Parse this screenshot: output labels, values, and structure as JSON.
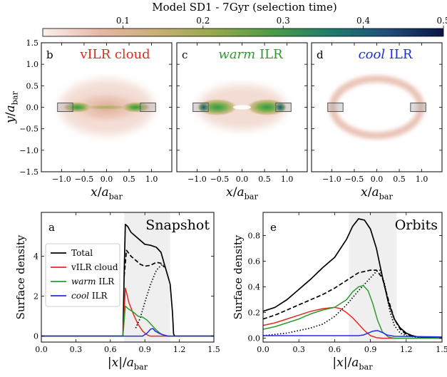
{
  "title": "Model SD1 - 7Gyr (selection time)",
  "colorbar": {
    "ticks": [
      "0.1",
      "0.2",
      "0.3",
      "0.4",
      "0.5"
    ],
    "tick_values": [
      0.1,
      0.2,
      0.3,
      0.4,
      0.5
    ],
    "range": [
      0,
      0.5
    ],
    "colors": [
      "#fbf0ee",
      "#e6b7a6",
      "#c7b075",
      "#96a94a",
      "#4c9b46",
      "#1f7e6b",
      "#1f4f7a",
      "#0c1445"
    ]
  },
  "maps": {
    "x_ticks": [
      "−1.0",
      "−0.5",
      "0.0",
      "0.5",
      "1.0"
    ],
    "y_ticks": [
      "1.5",
      "1.0",
      "0.5",
      "0.0",
      "−0.5",
      "−1.0",
      "−1.5"
    ],
    "x_label_var": "x",
    "y_label_var": "y",
    "label_over": "/a",
    "label_sub": "bar",
    "panels": [
      {
        "letter": "b",
        "title_prefix": "vILR cloud",
        "title_italic": "",
        "title_suffix": "",
        "color": "#e8281e"
      },
      {
        "letter": "c",
        "title_prefix": "",
        "title_italic": "warm",
        "title_suffix": " ILR",
        "color": "#2e9a2e"
      },
      {
        "letter": "d",
        "title_prefix": "",
        "title_italic": "cool",
        "title_suffix": " ILR",
        "color": "#1f2ee0"
      }
    ]
  },
  "chart_data": [
    {
      "type": "line",
      "panel": "a",
      "label": "Snapshot",
      "xlabel_var": "|x|",
      "label_over": "/a",
      "label_sub": "bar",
      "ylabel": "Surface density",
      "xlim": [
        0,
        1.5
      ],
      "ylim": [
        -0.3,
        6.2
      ],
      "x_ticks": [
        0.0,
        0.3,
        0.6,
        0.9,
        1.2,
        1.5
      ],
      "x_tick_labels": [
        "0.0",
        "0.3",
        "0.6",
        "0.9",
        "1.2",
        "1.5"
      ],
      "y_ticks": [
        0,
        2,
        4
      ],
      "y_tick_labels": [
        "0",
        "2",
        "4"
      ],
      "shaded": [
        0.72,
        1.12
      ],
      "legend": [
        {
          "label": "Total",
          "italic": "",
          "suffix": "",
          "color": "#000000"
        },
        {
          "label": "vILR cloud",
          "italic": "",
          "suffix": "",
          "color": "#e8281e"
        },
        {
          "label": "",
          "italic": "warm",
          "suffix": " ILR",
          "color": "#2e9a2e"
        },
        {
          "label": "",
          "italic": "cool",
          "suffix": " ILR",
          "color": "#1f2ee0"
        }
      ],
      "series": [
        {
          "color": "#000000",
          "style": "solid",
          "x": [
            0,
            0.71,
            0.72,
            0.73,
            0.75,
            0.78,
            0.82,
            0.86,
            0.9,
            0.95,
            1.0,
            1.04,
            1.07,
            1.1,
            1.12,
            1.14,
            1.15,
            1.16,
            1.5
          ],
          "y": [
            0,
            0,
            3.2,
            5.6,
            5.5,
            5.2,
            5.0,
            4.8,
            4.6,
            4.55,
            4.45,
            4.2,
            3.6,
            3.0,
            2.6,
            1.2,
            0.1,
            0,
            0
          ]
        },
        {
          "color": "#000000",
          "style": "dashed",
          "x": [
            0.72,
            0.74,
            0.78,
            0.82,
            0.86,
            0.9,
            0.95,
            1.0,
            1.04,
            1.07
          ],
          "y": [
            3.0,
            4.3,
            4.0,
            3.8,
            3.6,
            3.5,
            3.55,
            3.7,
            3.65,
            3.45
          ]
        },
        {
          "color": "#000000",
          "style": "dotted",
          "x": [
            0.82,
            0.86,
            0.9,
            0.95,
            1.0,
            1.05,
            1.08
          ],
          "y": [
            0.4,
            0.9,
            1.7,
            2.6,
            3.3,
            3.6,
            3.6
          ]
        },
        {
          "color": "#e8281e",
          "style": "solid",
          "x": [
            0,
            0.71,
            0.72,
            0.73,
            0.74,
            0.76,
            0.8,
            0.84,
            0.88,
            0.91,
            0.93,
            0.95,
            1.5
          ],
          "y": [
            0,
            0,
            1.2,
            2.4,
            2.2,
            1.7,
            1.1,
            0.6,
            0.25,
            0.1,
            0.03,
            0,
            0
          ]
        },
        {
          "color": "#2e9a2e",
          "style": "solid",
          "x": [
            0,
            0.71,
            0.72,
            0.73,
            0.76,
            0.8,
            0.84,
            0.88,
            0.92,
            0.96,
            1.0,
            1.03,
            1.06,
            1.1,
            1.5
          ],
          "y": [
            0,
            0,
            0.8,
            1.5,
            1.35,
            1.2,
            1.0,
            0.95,
            0.8,
            0.55,
            0.3,
            0.15,
            0.05,
            0,
            0
          ]
        },
        {
          "color": "#1f2ee0",
          "style": "solid",
          "x": [
            0,
            0.88,
            0.92,
            0.95,
            0.97,
            0.99,
            1.02,
            1.05,
            1.1,
            1.5
          ],
          "y": [
            0,
            0,
            0.15,
            0.35,
            0.38,
            0.25,
            0.15,
            0.08,
            0,
            0
          ]
        }
      ]
    },
    {
      "type": "line",
      "panel": "e",
      "label": "Orbits",
      "xlabel_var": "|x|",
      "label_over": "/a",
      "label_sub": "bar",
      "ylabel": "Surface density",
      "xlim": [
        0,
        1.5
      ],
      "ylim": [
        -0.03,
        0.98
      ],
      "x_ticks": [
        0.0,
        0.3,
        0.6,
        0.9,
        1.2,
        1.5
      ],
      "x_tick_labels": [
        "0.0",
        "0.3",
        "0.6",
        "0.9",
        "1.2",
        "1.5"
      ],
      "y_ticks": [
        0,
        0.2,
        0.4,
        0.6,
        0.8
      ],
      "y_tick_labels": [
        "0.0",
        "0.2",
        "0.4",
        "0.6",
        "0.8"
      ],
      "shaded": [
        0.72,
        1.12
      ],
      "series": [
        {
          "color": "#000000",
          "style": "solid",
          "x": [
            0,
            0.1,
            0.2,
            0.3,
            0.4,
            0.5,
            0.6,
            0.7,
            0.75,
            0.8,
            0.85,
            0.9,
            0.95,
            1.0,
            1.05,
            1.1,
            1.15,
            1.2,
            1.25,
            1.3,
            1.4,
            1.5
          ],
          "y": [
            0.21,
            0.24,
            0.3,
            0.38,
            0.46,
            0.55,
            0.63,
            0.77,
            0.87,
            0.93,
            0.92,
            0.85,
            0.7,
            0.48,
            0.28,
            0.15,
            0.08,
            0.04,
            0.02,
            0.01,
            0.005,
            0
          ]
        },
        {
          "color": "#000000",
          "style": "dashed",
          "x": [
            0,
            0.1,
            0.2,
            0.3,
            0.4,
            0.5,
            0.6,
            0.7,
            0.8,
            0.9,
            0.95,
            1.0,
            1.05,
            1.1,
            1.15,
            1.2,
            1.3,
            1.5
          ],
          "y": [
            0.15,
            0.18,
            0.22,
            0.26,
            0.3,
            0.34,
            0.39,
            0.45,
            0.51,
            0.53,
            0.53,
            0.47,
            0.3,
            0.15,
            0.07,
            0.03,
            0.01,
            0
          ]
        },
        {
          "color": "#000000",
          "style": "dotted",
          "x": [
            0,
            0.1,
            0.2,
            0.3,
            0.4,
            0.5,
            0.6,
            0.7,
            0.8,
            0.9,
            0.95,
            0.98,
            1.02,
            1.06,
            1.1,
            1.15,
            1.2,
            1.3,
            1.5
          ],
          "y": [
            0.02,
            0.03,
            0.04,
            0.06,
            0.08,
            0.11,
            0.17,
            0.26,
            0.37,
            0.47,
            0.52,
            0.53,
            0.42,
            0.22,
            0.1,
            0.04,
            0.02,
            0.005,
            0
          ]
        },
        {
          "color": "#e8281e",
          "style": "solid",
          "x": [
            0,
            0.1,
            0.2,
            0.3,
            0.4,
            0.5,
            0.6,
            0.65,
            0.7,
            0.75,
            0.8,
            0.85,
            0.9,
            0.95,
            1.0,
            1.1,
            1.5
          ],
          "y": [
            0.1,
            0.12,
            0.15,
            0.18,
            0.21,
            0.23,
            0.24,
            0.23,
            0.2,
            0.16,
            0.11,
            0.06,
            0.02,
            0.005,
            0,
            0,
            0
          ]
        },
        {
          "color": "#2e9a2e",
          "style": "solid",
          "x": [
            0,
            0.1,
            0.2,
            0.3,
            0.4,
            0.5,
            0.6,
            0.7,
            0.75,
            0.8,
            0.84,
            0.88,
            0.92,
            0.96,
            1.0,
            1.05,
            1.1,
            1.2,
            1.5
          ],
          "y": [
            0.07,
            0.09,
            0.12,
            0.15,
            0.19,
            0.22,
            0.24,
            0.3,
            0.36,
            0.4,
            0.41,
            0.37,
            0.27,
            0.14,
            0.05,
            0.01,
            0,
            0,
            0
          ]
        },
        {
          "color": "#1f2ee0",
          "style": "solid",
          "x": [
            0,
            0.6,
            0.7,
            0.76,
            0.8,
            0.84,
            0.88,
            0.92,
            0.96,
            1.0,
            1.04,
            1.1,
            1.5
          ],
          "y": [
            0.02,
            0.02,
            0.02,
            0.02,
            0.02,
            0.025,
            0.04,
            0.055,
            0.06,
            0.045,
            0.025,
            0.015,
            0.01
          ]
        }
      ]
    }
  ]
}
